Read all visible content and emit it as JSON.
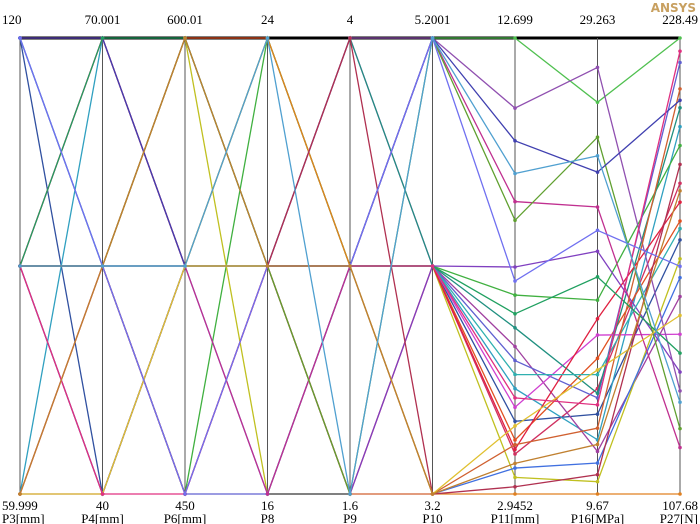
{
  "chart_data": {
    "type": "parallel",
    "logo": "ANSYS",
    "axes": [
      {
        "name": "P3[mm]",
        "min": 59.999,
        "max": 120
      },
      {
        "name": "P4[mm]",
        "min": 40,
        "max": 70.001
      },
      {
        "name": "P6[mm]",
        "min": 450,
        "max": 600.01
      },
      {
        "name": "P8",
        "min": 16,
        "max": 24
      },
      {
        "name": "P9",
        "min": 1.6,
        "max": 4
      },
      {
        "name": "P10",
        "min": 3.2,
        "max": 5.2001
      },
      {
        "name": "P11[mm]",
        "min": 2.9452,
        "max": 12.699
      },
      {
        "name": "P16[MPa]",
        "min": 9.67,
        "max": 29.263
      },
      {
        "name": "P27[N]",
        "min": 107.68,
        "max": 228.49
      }
    ],
    "series": [
      {
        "color": "#d03060",
        "values": [
          120,
          70.001,
          525,
          20,
          2.8,
          4.2,
          3.8,
          14.2,
          190
        ]
      },
      {
        "color": "#3050a0",
        "values": [
          120,
          40,
          525,
          20,
          2.8,
          4.2,
          4.5,
          13.1,
          175
        ]
      },
      {
        "color": "#30a0c0",
        "values": [
          59.999,
          70.001,
          525,
          20,
          2.8,
          4.2,
          5.2,
          12.0,
          205
        ]
      },
      {
        "color": "#a040a0",
        "values": [
          59.999,
          40,
          525,
          20,
          2.8,
          4.2,
          6.1,
          11.5,
          160
        ]
      },
      {
        "color": "#e05020",
        "values": [
          90,
          55,
          600.01,
          24,
          2.8,
          4.2,
          4.1,
          15.5,
          180
        ]
      },
      {
        "color": "#40b040",
        "values": [
          90,
          55,
          450,
          24,
          2.8,
          4.2,
          7.2,
          18.0,
          200
        ]
      },
      {
        "color": "#c0c020",
        "values": [
          90,
          55,
          600.01,
          16,
          2.8,
          4.2,
          3.3,
          10.2,
          170
        ]
      },
      {
        "color": "#6060d0",
        "values": [
          90,
          55,
          450,
          16,
          2.8,
          4.2,
          5.8,
          13.8,
          222
        ]
      },
      {
        "color": "#d040d0",
        "values": [
          90,
          70.001,
          525,
          20,
          4,
          4.2,
          4.8,
          16.5,
          150
        ]
      },
      {
        "color": "#209080",
        "values": [
          90,
          40,
          525,
          20,
          4,
          4.2,
          6.5,
          14.0,
          210
        ]
      },
      {
        "color": "#e02040",
        "values": [
          90,
          70.001,
          525,
          20,
          1.6,
          4.2,
          3.9,
          17.2,
          185
        ]
      },
      {
        "color": "#8040c0",
        "values": [
          90,
          40,
          525,
          20,
          1.6,
          4.2,
          7.8,
          20.1,
          140
        ]
      },
      {
        "color": "#50c050",
        "values": [
          120,
          55,
          525,
          24,
          2.8,
          5.2001,
          12.699,
          26.5,
          228.49
        ]
      },
      {
        "color": "#e08020",
        "values": [
          59.999,
          55,
          525,
          24,
          2.8,
          3.2,
          2.9452,
          9.67,
          107.68
        ]
      },
      {
        "color": "#4070e0",
        "values": [
          120,
          55,
          525,
          16,
          2.8,
          3.2,
          3.5,
          11.0,
          165
        ]
      },
      {
        "color": "#c03090",
        "values": [
          59.999,
          55,
          525,
          16,
          2.8,
          5.2001,
          9.2,
          22.0,
          120
        ]
      },
      {
        "color": "#30b0b0",
        "values": [
          90,
          55,
          525,
          20,
          2.8,
          4.2,
          5.5,
          14.8,
          178
        ]
      },
      {
        "color": "#9050b0",
        "values": [
          90,
          55,
          600.01,
          20,
          4,
          5.2001,
          11.2,
          28.0,
          135
        ]
      },
      {
        "color": "#d06030",
        "values": [
          90,
          55,
          450,
          20,
          1.6,
          3.2,
          4.0,
          12.5,
          215
        ]
      },
      {
        "color": "#60a030",
        "values": [
          90,
          55,
          600.01,
          20,
          1.6,
          5.2001,
          8.8,
          25.0,
          125
        ]
      },
      {
        "color": "#b03050",
        "values": [
          90,
          55,
          450,
          20,
          4,
          3.2,
          3.1,
          10.5,
          195
        ]
      },
      {
        "color": "#4040b0",
        "values": [
          120,
          70.001,
          525,
          20,
          2.8,
          5.2001,
          10.5,
          23.5,
          212
        ]
      },
      {
        "color": "#e0c030",
        "values": [
          59.999,
          40,
          525,
          20,
          2.8,
          3.2,
          4.4,
          15.0,
          155
        ]
      },
      {
        "color": "#20a060",
        "values": [
          90,
          70.001,
          600.01,
          20,
          2.8,
          4.2,
          6.8,
          19.0,
          145
        ]
      },
      {
        "color": "#e03080",
        "values": [
          90,
          40,
          450,
          20,
          2.8,
          4.2,
          5.0,
          13.5,
          225
        ]
      },
      {
        "color": "#7070f0",
        "values": [
          120,
          55,
          450,
          20,
          2.8,
          5.2001,
          7.5,
          21.0,
          168
        ]
      },
      {
        "color": "#c08030",
        "values": [
          59.999,
          55,
          600.01,
          20,
          2.8,
          3.2,
          3.6,
          11.8,
          188
        ]
      },
      {
        "color": "#50a0d0",
        "values": [
          90,
          55,
          525,
          24,
          1.6,
          5.2001,
          9.8,
          24.2,
          132
        ]
      }
    ]
  }
}
